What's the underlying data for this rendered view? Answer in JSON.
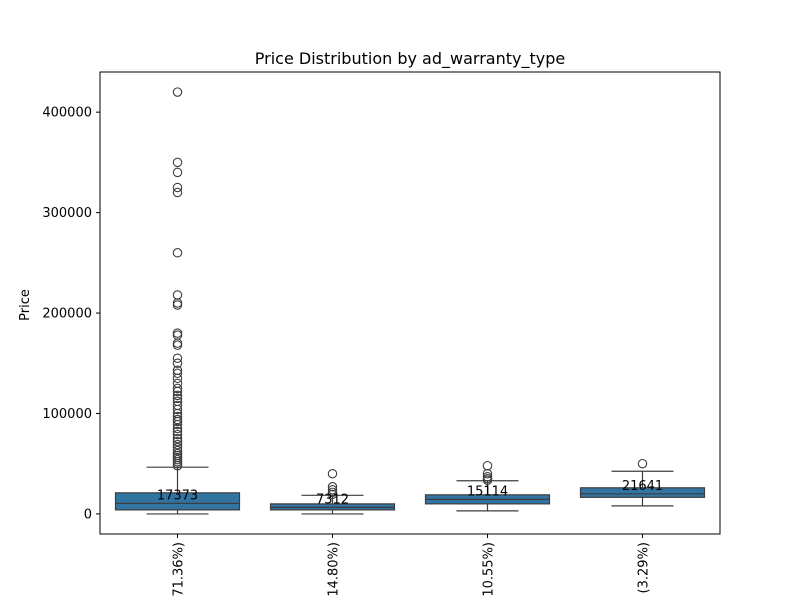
{
  "chart_data": {
    "type": "box",
    "title": "Price Distribution by ad_warranty_type",
    "xlabel": "",
    "ylabel": "Price",
    "ylim": [
      -20000,
      440000
    ],
    "yticks": [
      0,
      100000,
      200000,
      300000,
      400000
    ],
    "ytick_labels": [
      "0",
      "100000",
      "200000",
      "300000",
      "400000"
    ],
    "categories": [
      "71.36%)",
      "14.80%)",
      "10.55%)",
      "(3.29%)"
    ],
    "box_color": "#3274a1",
    "grid": false,
    "series": [
      {
        "whisker_low": 0,
        "q1": 4000,
        "median": 10500,
        "q3": 21000,
        "whisker_high": 46500,
        "median_label": "17373",
        "outliers": [
          420000,
          350000,
          340000,
          325000,
          320000,
          260000,
          218000,
          210000,
          208000,
          180000,
          178000,
          170000,
          168000,
          155000,
          150000,
          143000,
          140000,
          135000,
          130000,
          125000,
          122000,
          118000,
          115000,
          112000,
          108000,
          104000,
          100000,
          97000,
          94000,
          92000,
          89000,
          85000,
          82000,
          79000,
          75000,
          72000,
          69000,
          66000,
          63000,
          60000,
          58000,
          56000,
          54000,
          52000,
          50000,
          48000
        ]
      },
      {
        "whisker_low": 0,
        "q1": 4000,
        "median": 6500,
        "q3": 10000,
        "whisker_high": 18500,
        "median_label": "7312",
        "outliers": [
          40000,
          27000,
          24000,
          21500,
          19500
        ]
      },
      {
        "whisker_low": 3000,
        "q1": 10000,
        "median": 14500,
        "q3": 19000,
        "whisker_high": 33000,
        "median_label": "15114",
        "outliers": [
          48000,
          40000,
          37000,
          35000,
          33500
        ]
      },
      {
        "whisker_low": 8000,
        "q1": 16500,
        "median": 20000,
        "q3": 26000,
        "whisker_high": 42500,
        "median_label": "21641",
        "outliers": [
          50000
        ]
      }
    ]
  }
}
